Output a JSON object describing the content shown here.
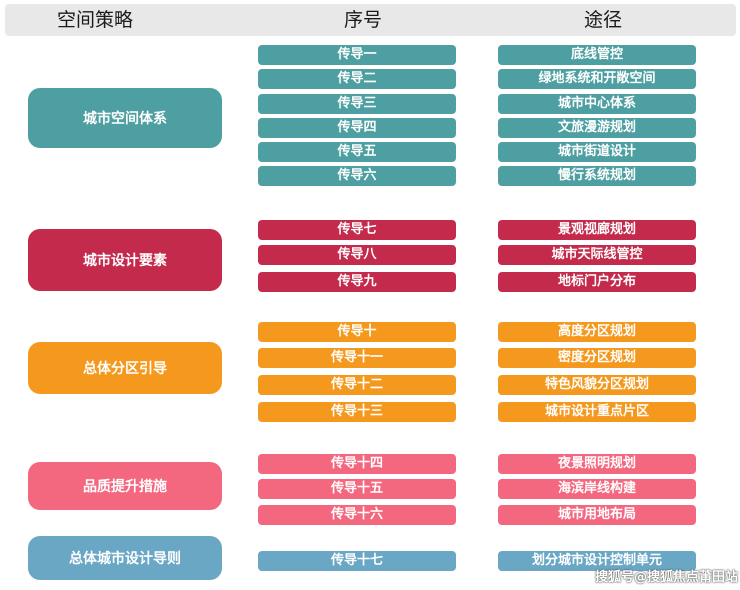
{
  "header": {
    "col1": "空间策略",
    "col2": "序号",
    "col3": "途径"
  },
  "groups": [
    {
      "category": "城市空间体系",
      "color": "#4e9fa1",
      "rows": [
        {
          "num": "传导一",
          "path": "底线管控"
        },
        {
          "num": "传导二",
          "path": "绿地系统和开敞空间"
        },
        {
          "num": "传导三",
          "path": "城市中心体系"
        },
        {
          "num": "传导四",
          "path": "文旅漫游规划"
        },
        {
          "num": "传导五",
          "path": "城市街道设计"
        },
        {
          "num": "传导六",
          "path": "慢行系统规划"
        }
      ]
    },
    {
      "category": "城市设计要素",
      "color": "#c42a4c",
      "rows": [
        {
          "num": "传导七",
          "path": "景观视廊规划"
        },
        {
          "num": "传导八",
          "path": "城市天际线管控"
        },
        {
          "num": "传导九",
          "path": "地标门户分布"
        }
      ]
    },
    {
      "category": "总体分区引导",
      "color": "#f5991e",
      "rows": [
        {
          "num": "传导十",
          "path": "高度分区规划"
        },
        {
          "num": "传导十一",
          "path": "密度分区规划"
        },
        {
          "num": "传导十二",
          "path": "特色风貌分区规划"
        },
        {
          "num": "传导十三",
          "path": "城市设计重点片区"
        }
      ]
    },
    {
      "category": "品质提升措施",
      "color": "#f3677f",
      "rows": [
        {
          "num": "传导十四",
          "path": "夜景照明规划"
        },
        {
          "num": "传导十五",
          "path": "海滨岸线构建"
        },
        {
          "num": "传导十六",
          "path": "城市用地布局"
        }
      ]
    },
    {
      "category": "总体城市设计导则",
      "color": "#6aa7c5",
      "rows": [
        {
          "num": "传导十七",
          "path": "划分城市设计控制单元"
        }
      ]
    }
  ],
  "watermark": "搜狐号@搜狐焦点莆田站"
}
